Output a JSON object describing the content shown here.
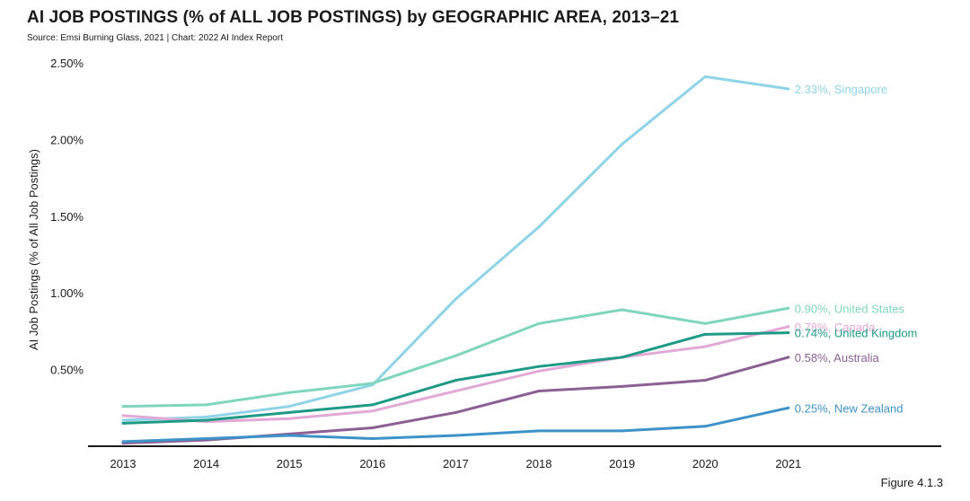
{
  "header": {
    "title": "AI JOB POSTINGS (% of ALL JOB POSTINGS) by GEOGRAPHIC AREA, 2013–21",
    "subtitle": "Source: Emsi Burning Glass, 2021 | Chart: 2022 AI Index Report",
    "figure": "Figure 4.1.3"
  },
  "chart_data": {
    "type": "line",
    "title": "AI JOB POSTINGS (% of ALL JOB POSTINGS) by GEOGRAPHIC AREA, 2013–21",
    "xlabel": "",
    "ylabel": "AI Job Postings (% of All Job Postings)",
    "x": [
      2013,
      2014,
      2015,
      2016,
      2017,
      2018,
      2019,
      2020,
      2021
    ],
    "x_tick_labels": [
      "2013",
      "2014",
      "2015",
      "2016",
      "2017",
      "2018",
      "2019",
      "2020",
      "2021"
    ],
    "ylim": [
      0,
      2.5
    ],
    "y_ticks": [
      0.5,
      1.0,
      1.5,
      2.0,
      2.5
    ],
    "y_tick_labels": [
      "0.50%",
      "1.00%",
      "1.50%",
      "2.00%",
      "2.50%"
    ],
    "grid": false,
    "series": [
      {
        "name": "Singapore",
        "color": "#8fd3e8",
        "end_label": "2.33%, Singapore",
        "values": [
          0.17,
          0.19,
          0.26,
          0.4,
          0.96,
          1.43,
          1.97,
          2.41,
          2.33
        ]
      },
      {
        "name": "United States",
        "color": "#7fd6bd",
        "end_label": "0.90%, United States",
        "values": [
          0.26,
          0.27,
          0.35,
          0.41,
          0.59,
          0.8,
          0.89,
          0.8,
          0.9
        ]
      },
      {
        "name": "Canada",
        "color": "#e3a9d6",
        "end_label": "0.78%, Canada",
        "values": [
          0.2,
          0.16,
          0.18,
          0.23,
          0.36,
          0.49,
          0.58,
          0.65,
          0.78
        ]
      },
      {
        "name": "United Kingdom",
        "color": "#1f9a86",
        "end_label": "0.74%, United Kingdom",
        "values": [
          0.15,
          0.17,
          0.22,
          0.27,
          0.43,
          0.52,
          0.58,
          0.73,
          0.74
        ]
      },
      {
        "name": "Australia",
        "color": "#8c5f95",
        "end_label": "0.58%, Australia",
        "values": [
          0.02,
          0.04,
          0.08,
          0.12,
          0.22,
          0.36,
          0.39,
          0.43,
          0.58
        ]
      },
      {
        "name": "New Zealand",
        "color": "#3d93c7",
        "end_label": "0.25%, New Zealand",
        "values": [
          0.03,
          0.05,
          0.07,
          0.05,
          0.07,
          0.1,
          0.1,
          0.13,
          0.25
        ]
      }
    ]
  }
}
